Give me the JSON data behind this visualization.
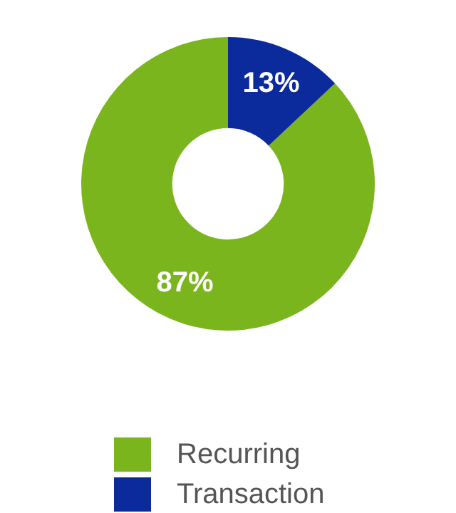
{
  "chart_data": {
    "type": "donut",
    "categories": [
      "Recurring",
      "Transaction"
    ],
    "values": [
      87,
      13
    ],
    "colors": [
      "#7ab51d",
      "#0b2a9b"
    ],
    "value_labels": [
      "87%",
      "13%"
    ],
    "legend": "bottom"
  }
}
